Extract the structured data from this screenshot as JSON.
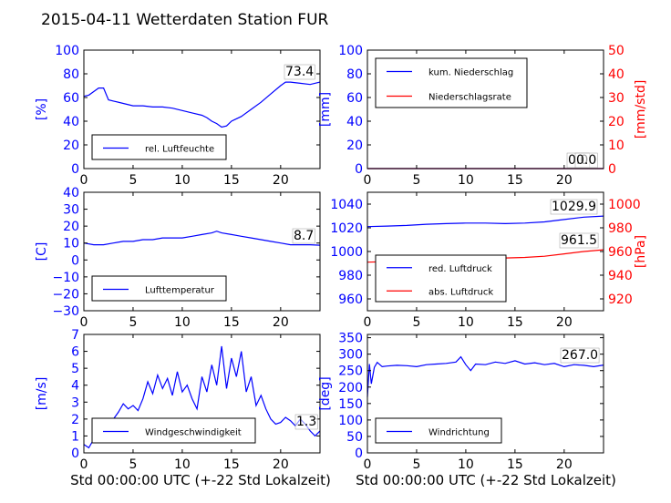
{
  "figure": {
    "title": "2015-04-11 Wetterdaten Station FUR",
    "left_xlabel": "Std 00:00:00 UTC (+-22 Std Lokalzeit)",
    "right_xlabel": "Std 00:00:00 UTC (+-22 Std Lokalzeit)"
  },
  "colors": {
    "blue": "#0000ff",
    "red": "#ff0000",
    "black": "#000000"
  },
  "chart_data": [
    {
      "id": "humidity",
      "type": "line",
      "ylabel": "[%]",
      "xlim": [
        0,
        24
      ],
      "ylim": [
        0,
        100
      ],
      "xticks": [
        "0",
        "5",
        "10",
        "15",
        "20"
      ],
      "yticks": [
        "0",
        "20",
        "40",
        "60",
        "80",
        "100"
      ],
      "series": [
        {
          "name": "rel. Luftfeuchte",
          "color": "#0000ff",
          "x": [
            0,
            0.5,
            1,
            1.5,
            2,
            2.5,
            3,
            4,
            5,
            6,
            7,
            8,
            9,
            10,
            11,
            12,
            12.5,
            13,
            13.5,
            14,
            14.5,
            15,
            16,
            17,
            18,
            19,
            20,
            20.5,
            21,
            22,
            23,
            24
          ],
          "y": [
            61,
            62,
            65,
            68,
            68,
            58,
            57,
            55,
            53,
            53,
            52,
            52,
            51,
            49,
            47,
            45,
            43,
            40,
            38,
            35,
            36,
            40,
            44,
            50,
            56,
            63,
            70,
            73,
            73,
            72,
            71,
            73
          ]
        }
      ],
      "annotations": [
        {
          "text": "73.4"
        }
      ],
      "legend": "lower-left"
    },
    {
      "id": "precipitation",
      "type": "line",
      "ylabel": "[mm]",
      "ylabel_right": "[mm/std]",
      "xlim": [
        0,
        24
      ],
      "ylim": [
        0,
        100
      ],
      "ylim_right": [
        0,
        50
      ],
      "xticks": [
        "0",
        "5",
        "10",
        "15",
        "20"
      ],
      "yticks": [
        "0",
        "20",
        "40",
        "60",
        "80",
        "100"
      ],
      "yticks_right": [
        "0",
        "10",
        "20",
        "30",
        "40",
        "50"
      ],
      "series": [
        {
          "name": "kum. Niederschlag",
          "color": "#0000ff",
          "axis": "left",
          "x": [
            0,
            24
          ],
          "y": [
            0,
            0
          ]
        },
        {
          "name": "Niederschlagsrate",
          "color": "#ff0000",
          "axis": "right",
          "x": [
            0,
            24
          ],
          "y": [
            0,
            0
          ]
        }
      ],
      "annotations": [
        {
          "text": "0.0"
        },
        {
          "text": "0.0"
        }
      ],
      "legend": "upper-left"
    },
    {
      "id": "temperature",
      "type": "line",
      "ylabel": "[C]",
      "xlim": [
        0,
        24
      ],
      "ylim": [
        -30,
        40
      ],
      "xticks": [
        "0",
        "5",
        "10",
        "15",
        "20"
      ],
      "yticks": [
        "−30",
        "−20",
        "−10",
        "0",
        "10",
        "20",
        "30",
        "40"
      ],
      "series": [
        {
          "name": "Lufttemperatur",
          "color": "#0000ff",
          "x": [
            0,
            1,
            2,
            3,
            4,
            5,
            6,
            7,
            8,
            9,
            10,
            11,
            12,
            13,
            13.5,
            14,
            15,
            16,
            17,
            18,
            19,
            20,
            21,
            22,
            23,
            24
          ],
          "y": [
            10,
            9,
            9,
            10,
            11,
            11,
            12,
            12,
            13,
            13,
            13,
            14,
            15,
            16,
            17,
            16,
            15,
            14,
            13,
            12,
            11,
            10,
            9,
            9,
            9,
            8.7
          ]
        }
      ],
      "annotations": [
        {
          "text": "8.7"
        }
      ],
      "legend": "lower-left"
    },
    {
      "id": "pressure",
      "type": "line",
      "ylabel_right": "[hPa]",
      "xlim": [
        0,
        24
      ],
      "ylim": [
        950,
        1050
      ],
      "ylim_right": [
        910,
        1010
      ],
      "xticks": [
        "0",
        "5",
        "10",
        "15",
        "20"
      ],
      "yticks": [
        "960",
        "980",
        "1000",
        "1020",
        "1040"
      ],
      "yticks_right": [
        "920",
        "940",
        "960",
        "980",
        "1000"
      ],
      "series": [
        {
          "name": "red. Luftdruck",
          "color": "#0000ff",
          "axis": "left",
          "x": [
            0,
            2,
            4,
            6,
            8,
            10,
            12,
            14,
            16,
            18,
            20,
            22,
            24
          ],
          "y": [
            1021,
            1021.5,
            1022,
            1023,
            1023.5,
            1024,
            1024,
            1023.5,
            1024,
            1025,
            1027,
            1029,
            1029.9
          ]
        },
        {
          "name": "abs. Luftdruck",
          "color": "#ff0000",
          "axis": "right",
          "x": [
            0,
            2,
            4,
            6,
            8,
            10,
            12,
            14,
            16,
            18,
            20,
            22,
            24
          ],
          "y": [
            951,
            951.5,
            952,
            952.5,
            953,
            953.5,
            954,
            954.5,
            955,
            956,
            958,
            960,
            961.5
          ]
        }
      ],
      "annotations": [
        {
          "text": "1029.9"
        },
        {
          "text": "961.5"
        }
      ],
      "legend": "lower-left"
    },
    {
      "id": "windspeed",
      "type": "line",
      "ylabel": "[m/s]",
      "xlim": [
        0,
        24
      ],
      "ylim": [
        0,
        7
      ],
      "xticks": [
        "0",
        "5",
        "10",
        "15",
        "20"
      ],
      "yticks": [
        "0",
        "1",
        "2",
        "3",
        "4",
        "5",
        "6",
        "7"
      ],
      "series": [
        {
          "name": "Windgeschwindigkeit",
          "color": "#0000ff",
          "x": [
            0,
            0.5,
            1,
            1.5,
            2,
            2.5,
            3,
            3.5,
            4,
            4.5,
            5,
            5.5,
            6,
            6.5,
            7,
            7.5,
            8,
            8.5,
            9,
            9.5,
            10,
            10.5,
            11,
            11.5,
            12,
            12.5,
            13,
            13.5,
            14,
            14.5,
            15,
            15.5,
            16,
            16.5,
            17,
            17.5,
            18,
            18.5,
            19,
            19.5,
            20,
            20.5,
            21,
            21.5,
            22,
            22.5,
            23,
            23.5,
            24
          ],
          "y": [
            0.5,
            0.3,
            0.8,
            1.2,
            1.6,
            1.8,
            2.0,
            2.4,
            2.9,
            2.6,
            2.8,
            2.5,
            3.2,
            4.2,
            3.5,
            4.6,
            3.8,
            4.4,
            3.4,
            4.8,
            3.6,
            4.0,
            3.2,
            2.6,
            4.5,
            3.6,
            5.2,
            4.0,
            6.3,
            3.8,
            5.6,
            4.5,
            6.0,
            3.6,
            4.5,
            2.8,
            3.4,
            2.6,
            2.0,
            1.7,
            1.8,
            2.1,
            1.9,
            1.6,
            2.0,
            1.7,
            1.3,
            1.0,
            1.3
          ]
        }
      ],
      "annotations": [
        {
          "text": "1.3"
        }
      ],
      "legend": "lower-left"
    },
    {
      "id": "winddirection",
      "type": "line",
      "ylabel": "[deg]",
      "xlim": [
        0,
        24
      ],
      "ylim": [
        0,
        360
      ],
      "xticks": [
        "0",
        "5",
        "10",
        "15",
        "20"
      ],
      "yticks": [
        "0",
        "50",
        "100",
        "150",
        "200",
        "250",
        "300",
        "350"
      ],
      "series": [
        {
          "name": "Windrichtung",
          "color": "#0000ff",
          "x": [
            0,
            0.2,
            0.4,
            0.7,
            1,
            1.5,
            2,
            3,
            4,
            5,
            6,
            7,
            8,
            9,
            9.5,
            10,
            10.5,
            11,
            12,
            13,
            14,
            15,
            16,
            17,
            18,
            19,
            20,
            21,
            22,
            23,
            24
          ],
          "y": [
            170,
            270,
            210,
            260,
            275,
            262,
            264,
            266,
            265,
            262,
            268,
            270,
            272,
            276,
            292,
            268,
            250,
            270,
            268,
            276,
            272,
            280,
            270,
            274,
            268,
            272,
            262,
            268,
            266,
            262,
            267
          ]
        }
      ],
      "annotations": [
        {
          "text": "267.0"
        }
      ],
      "legend": "lower-left"
    }
  ]
}
